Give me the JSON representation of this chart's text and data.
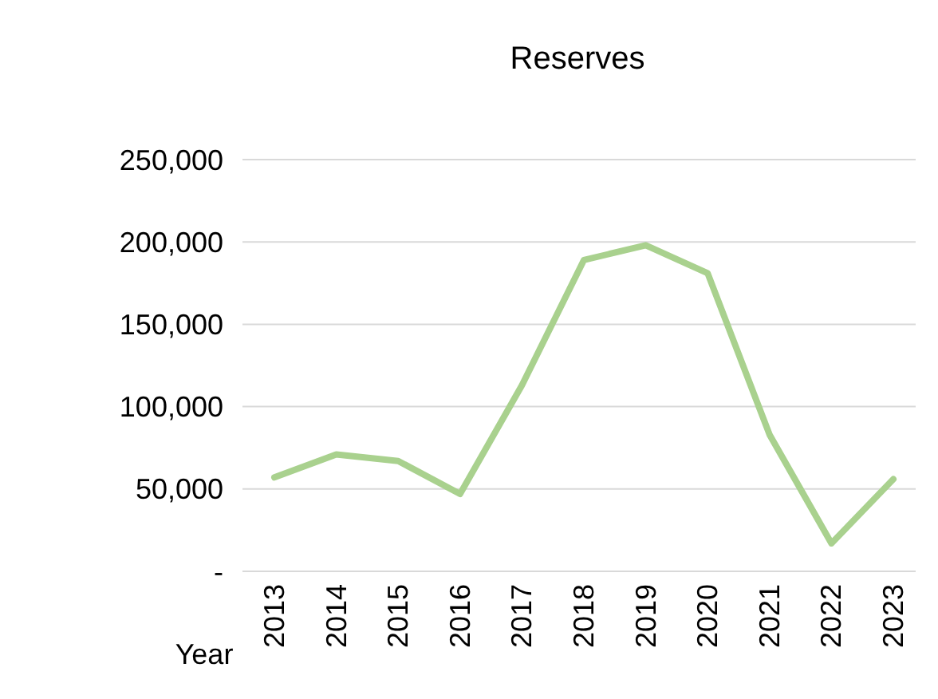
{
  "chart_data": {
    "type": "line",
    "title": "Reserves",
    "xlabel": "Year",
    "categories": [
      "2013",
      "2014",
      "2015",
      "2016",
      "2017",
      "2018",
      "2019",
      "2020",
      "2021",
      "2022",
      "2023"
    ],
    "series": [
      {
        "color": "#a9d18e",
        "values": [
          57000,
          71000,
          67000,
          47000,
          113000,
          189000,
          198000,
          181000,
          83000,
          17000,
          56000
        ]
      }
    ],
    "ylim": [
      0,
      250000
    ],
    "yticks": [
      {
        "value": 0,
        "label": "-"
      },
      {
        "value": 50000,
        "label": "50,000"
      },
      {
        "value": 100000,
        "label": "100,000"
      },
      {
        "value": 150000,
        "label": "150,000"
      },
      {
        "value": 200000,
        "label": "200,000"
      },
      {
        "value": 250000,
        "label": "250,000"
      }
    ],
    "grid": "y",
    "marker": "none",
    "line_style": "solid"
  }
}
